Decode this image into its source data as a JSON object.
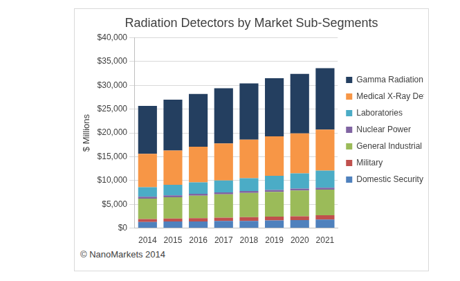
{
  "chart_data": {
    "type": "bar",
    "title": "Radiation Detectors by Market Sub-Segments",
    "y_label": "$ Millions",
    "source": "© NanoMarkets 2014",
    "stacked": true,
    "grid": true,
    "legend": "right",
    "categories": [
      "2014",
      "2015",
      "2016",
      "2017",
      "2018",
      "2019",
      "2020",
      "2021"
    ],
    "series": [
      {
        "name": "Domestic Security",
        "color": "#4f81bd",
        "values": [
          1300,
          1400,
          1400,
          1500,
          1500,
          1600,
          1700,
          1800
        ]
      },
      {
        "name": "Military",
        "color": "#c0504d",
        "values": [
          600,
          600,
          700,
          700,
          800,
          800,
          800,
          900
        ]
      },
      {
        "name": "General Industrial Applications",
        "color": "#9bbb59",
        "values": [
          4300,
          4500,
          4700,
          4900,
          5100,
          5200,
          5400,
          5400
        ]
      },
      {
        "name": "Nuclear Power",
        "color": "#8064a2",
        "values": [
          400,
          400,
          400,
          400,
          400,
          400,
          400,
          400
        ]
      },
      {
        "name": "Laboratories",
        "color": "#4bacc6",
        "values": [
          2000,
          2200,
          2400,
          2500,
          2700,
          3000,
          3200,
          3600
        ]
      },
      {
        "name": "Medical X-Ray Detection",
        "color": "#f79646",
        "values": [
          7000,
          7200,
          7500,
          7800,
          8100,
          8300,
          8400,
          8600
        ]
      },
      {
        "name": "Gamma Radiation Detection",
        "color": "#243f60",
        "values": [
          10100,
          10700,
          11100,
          11600,
          11800,
          12200,
          12500,
          12900
        ]
      }
    ],
    "ylim": [
      0,
      40000
    ],
    "yticks": [
      {
        "value": 0,
        "label": "$0"
      },
      {
        "value": 5000,
        "label": "$5,000"
      },
      {
        "value": 10000,
        "label": "$10,000"
      },
      {
        "value": 15000,
        "label": "$15,000"
      },
      {
        "value": 20000,
        "label": "$20,000"
      },
      {
        "value": 25000,
        "label": "$25,000"
      },
      {
        "value": 30000,
        "label": "$30,000"
      },
      {
        "value": 35000,
        "label": "$35,000"
      },
      {
        "value": 40000,
        "label": "$40,000"
      }
    ]
  }
}
